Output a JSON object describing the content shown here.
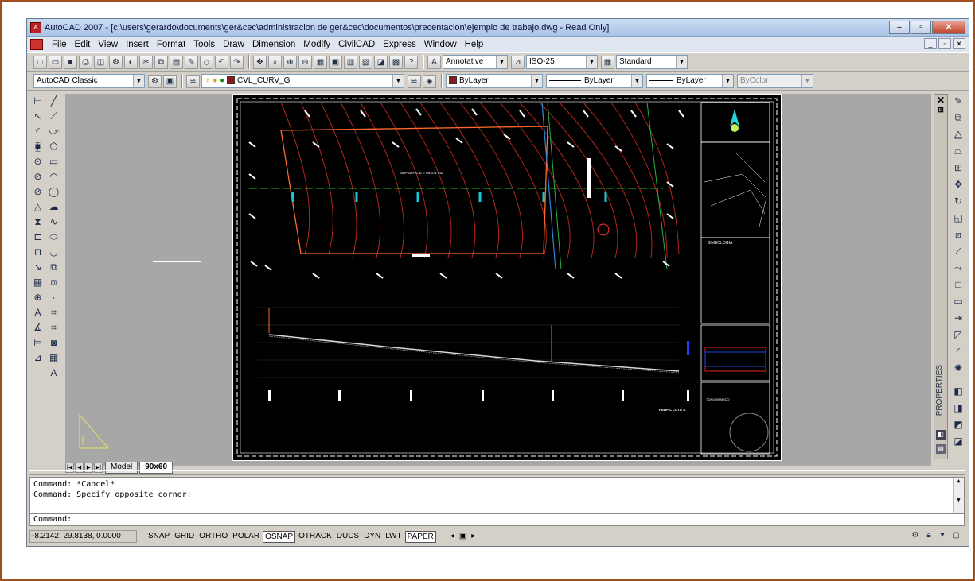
{
  "window": {
    "title": "AutoCAD 2007 - [c:\\users\\gerardo\\documents\\ger&cec\\administracion de ger&cec\\documentos\\precentacion\\ejemplo de trabajo.dwg - Read Only]"
  },
  "menu": [
    "File",
    "Edit",
    "View",
    "Insert",
    "Format",
    "Tools",
    "Draw",
    "Dimension",
    "Modify",
    "CivilCAD",
    "Express",
    "Window",
    "Help"
  ],
  "toolbar1": {
    "annotative_label": "Annotative",
    "dimstyle": "ISO-25",
    "tablestyle": "Standard"
  },
  "toolbar2": {
    "workspace": "AutoCAD Classic",
    "layer": "CVL_CURV_G",
    "color": "ByLayer",
    "linetype": "ByLayer",
    "lineweight": "ByLayer",
    "plotstyle": "ByColor"
  },
  "drawing": {
    "plan_label": "SUPERFICIE = 89.371 m2",
    "legend_title": "SIMBOLOGIA",
    "title_block_label": "TOPOGRAFICO",
    "profile_title": "PERFIL LOTE K"
  },
  "properties_label": "PROPERTIES",
  "layout_tabs": [
    {
      "label": "Model",
      "active": false
    },
    {
      "label": "90x60",
      "active": true
    }
  ],
  "command": {
    "history": [
      "Command: *Cancel*",
      "Command: Specify opposite corner:"
    ],
    "prompt": "Command:"
  },
  "status": {
    "coords": "-8.2142, 29.8138, 0.0000",
    "buttons": [
      {
        "label": "SNAP",
        "on": false
      },
      {
        "label": "GRID",
        "on": false
      },
      {
        "label": "ORTHO",
        "on": false
      },
      {
        "label": "POLAR",
        "on": false
      },
      {
        "label": "OSNAP",
        "on": true
      },
      {
        "label": "OTRACK",
        "on": false
      },
      {
        "label": "DUCS",
        "on": false
      },
      {
        "label": "DYN",
        "on": false
      },
      {
        "label": "LWT",
        "on": false
      },
      {
        "label": "PAPER",
        "on": true
      }
    ]
  }
}
